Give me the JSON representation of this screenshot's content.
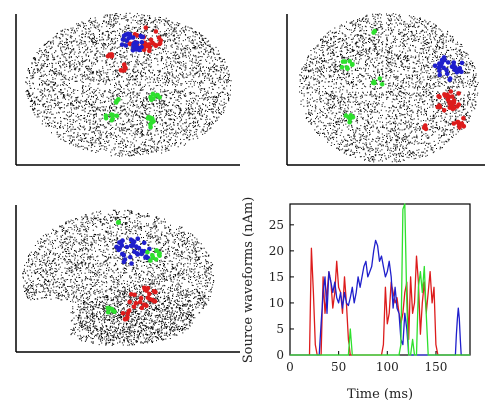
{
  "colors": {
    "red": "#dd1c1c",
    "blue": "#1f1fcc",
    "green": "#2ee02e",
    "background": "#ffffff",
    "scatter_dots": "#000000",
    "frame": "#000000"
  },
  "brain_panels": [
    {
      "view": "top",
      "clusters": [
        "blue",
        "red",
        "green"
      ]
    },
    {
      "view": "back",
      "clusters": [
        "blue",
        "red",
        "green"
      ]
    },
    {
      "view": "side",
      "clusters": [
        "blue",
        "red",
        "green"
      ]
    }
  ],
  "chart_data": {
    "type": "line",
    "title": "",
    "xlabel": "Time (ms)",
    "ylabel": "Source waveforms (nAm)",
    "xlim": [
      0,
      185
    ],
    "ylim": [
      0,
      29
    ],
    "xticks": [
      0,
      50,
      100,
      150
    ],
    "yticks": [
      0,
      5,
      10,
      15,
      20,
      25
    ],
    "grid": false,
    "series": [
      {
        "color": "red",
        "x": [
          0,
          20,
          22,
          24,
          26,
          28,
          30,
          32,
          34,
          36,
          38,
          40,
          42,
          44,
          46,
          48,
          50,
          52,
          54,
          56,
          58,
          60,
          62,
          64,
          66,
          68,
          70,
          72,
          74,
          76,
          78,
          80,
          82,
          84,
          86,
          88,
          90,
          92,
          94,
          96,
          98,
          100,
          102,
          104,
          106,
          108,
          110,
          112,
          114,
          116,
          118,
          120,
          122,
          124,
          126,
          128,
          130,
          132,
          134,
          136,
          138,
          140,
          142,
          144,
          146,
          148,
          150,
          152,
          185
        ],
        "y": [
          0,
          0,
          20.5,
          12,
          2,
          0,
          0,
          0,
          15,
          8,
          12,
          16,
          14,
          9,
          12,
          18,
          13,
          12,
          8,
          15,
          10,
          3,
          0,
          0,
          0,
          0,
          0,
          0,
          0,
          0,
          0,
          0,
          0,
          0,
          0,
          0,
          0,
          0,
          0,
          2,
          13,
          6,
          8,
          14,
          12,
          10,
          11,
          8,
          6,
          8,
          12,
          14,
          3,
          15,
          8,
          10,
          19,
          14,
          4,
          10,
          14,
          8,
          12,
          16,
          10,
          13,
          2,
          0,
          0
        ]
      },
      {
        "color": "blue",
        "x": [
          0,
          30,
          32,
          34,
          36,
          38,
          40,
          42,
          44,
          46,
          48,
          50,
          52,
          54,
          56,
          58,
          60,
          62,
          64,
          66,
          68,
          70,
          72,
          74,
          76,
          78,
          80,
          82,
          84,
          86,
          88,
          90,
          92,
          94,
          96,
          98,
          100,
          102,
          104,
          106,
          108,
          110,
          112,
          114,
          116,
          118,
          120,
          122,
          124,
          126,
          128,
          130,
          132,
          134,
          136,
          138,
          140,
          142,
          144,
          146,
          148,
          150,
          168,
          170,
          171,
          172,
          173,
          174,
          175,
          176,
          185
        ],
        "y": [
          0,
          0,
          6,
          12,
          15,
          8,
          16,
          14,
          12,
          14,
          11,
          10,
          12,
          9,
          12,
          10,
          9.5,
          11,
          13,
          10,
          12,
          15,
          13,
          15,
          17,
          18,
          15,
          16,
          17,
          20,
          22,
          21,
          18,
          19,
          17,
          15,
          16,
          18,
          15,
          9,
          13,
          9,
          8,
          3,
          2,
          8,
          5,
          0,
          0,
          0,
          0,
          0,
          0,
          0,
          0,
          0,
          0,
          0,
          0,
          0,
          0,
          0,
          0,
          0,
          4,
          7,
          9,
          7,
          3,
          0,
          0
        ]
      },
      {
        "color": "green",
        "x": [
          0,
          58,
          60,
          62,
          64,
          66,
          68,
          70,
          110,
          112,
          114,
          116,
          118,
          120,
          122,
          124,
          126,
          128,
          130,
          132,
          134,
          136,
          138,
          140,
          142,
          144,
          146,
          185
        ],
        "y": [
          0,
          0,
          0,
          5,
          0,
          0,
          0,
          0,
          0,
          0,
          2,
          28,
          29,
          10,
          0,
          0,
          3,
          0,
          0,
          13,
          16,
          12,
          17,
          8,
          0,
          0,
          0,
          0
        ]
      }
    ]
  }
}
